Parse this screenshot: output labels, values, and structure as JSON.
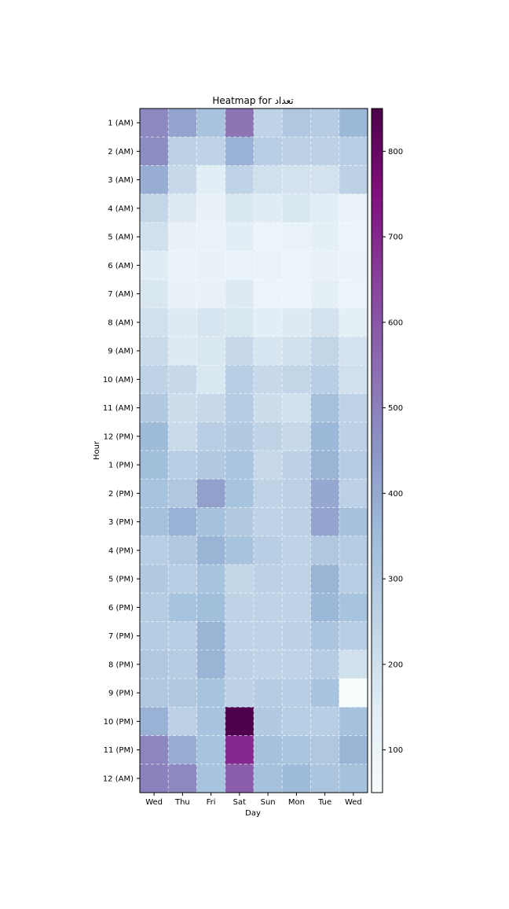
{
  "chart_data": {
    "type": "heatmap",
    "title": "Heatmap for تعداد",
    "xlabel": "Day",
    "ylabel": "Hour",
    "x_categories": [
      "Wed",
      "Thu",
      "Fri",
      "Sat",
      "Sun",
      "Mon",
      "Tue",
      "Wed"
    ],
    "y_categories": [
      "1 (AM)",
      "2 (AM)",
      "3 (AM)",
      "4 (AM)",
      "5 (AM)",
      "6 (AM)",
      "7 (AM)",
      "8 (AM)",
      "9 (AM)",
      "10 (AM)",
      "11 (AM)",
      "12 (PM)",
      "1 (PM)",
      "2 (PM)",
      "3 (PM)",
      "4 (PM)",
      "5 (PM)",
      "6 (PM)",
      "7 (PM)",
      "8 (PM)",
      "9 (PM)",
      "10 (PM)",
      "11 (PM)",
      "12 (AM)"
    ],
    "values": [
      [
        480,
        410,
        320,
        530,
        250,
        300,
        280,
        360
      ],
      [
        470,
        260,
        250,
        380,
        270,
        260,
        260,
        270
      ],
      [
        390,
        230,
        140,
        250,
        200,
        190,
        190,
        260
      ],
      [
        240,
        160,
        120,
        170,
        150,
        170,
        140,
        110
      ],
      [
        200,
        120,
        110,
        140,
        100,
        110,
        130,
        100
      ],
      [
        150,
        110,
        120,
        110,
        110,
        100,
        120,
        110
      ],
      [
        170,
        120,
        120,
        160,
        100,
        100,
        130,
        100
      ],
      [
        200,
        160,
        180,
        170,
        140,
        160,
        190,
        130
      ],
      [
        220,
        160,
        170,
        230,
        180,
        200,
        240,
        190
      ],
      [
        250,
        230,
        170,
        270,
        230,
        240,
        270,
        200
      ],
      [
        290,
        210,
        230,
        280,
        210,
        200,
        330,
        250
      ],
      [
        350,
        220,
        270,
        290,
        250,
        230,
        360,
        260
      ],
      [
        340,
        270,
        290,
        310,
        230,
        260,
        370,
        280
      ],
      [
        320,
        300,
        420,
        320,
        250,
        260,
        400,
        260
      ],
      [
        330,
        380,
        330,
        290,
        250,
        260,
        410,
        330
      ],
      [
        270,
        300,
        370,
        320,
        270,
        250,
        300,
        280
      ],
      [
        290,
        270,
        320,
        240,
        260,
        250,
        370,
        270
      ],
      [
        280,
        320,
        340,
        250,
        250,
        250,
        360,
        320
      ],
      [
        280,
        270,
        370,
        250,
        250,
        260,
        310,
        270
      ],
      [
        300,
        280,
        370,
        260,
        250,
        250,
        280,
        200
      ],
      [
        300,
        300,
        320,
        260,
        280,
        270,
        320,
        50
      ],
      [
        380,
        260,
        320,
        850,
        290,
        270,
        270,
        330
      ],
      [
        490,
        390,
        320,
        700,
        330,
        310,
        300,
        370
      ],
      [
        500,
        480,
        320,
        580,
        330,
        350,
        310,
        330
      ]
    ],
    "vmin": 50,
    "vmax": 850,
    "colormap": "BuPu",
    "colorbar": {
      "ticks": [
        100,
        200,
        300,
        400,
        500,
        600,
        700,
        800
      ],
      "tick_labels": [
        "100",
        "200",
        "300",
        "400",
        "500",
        "600",
        "700",
        "800"
      ],
      "placement": "right"
    },
    "grid": true,
    "grid_style": "dashed white"
  }
}
